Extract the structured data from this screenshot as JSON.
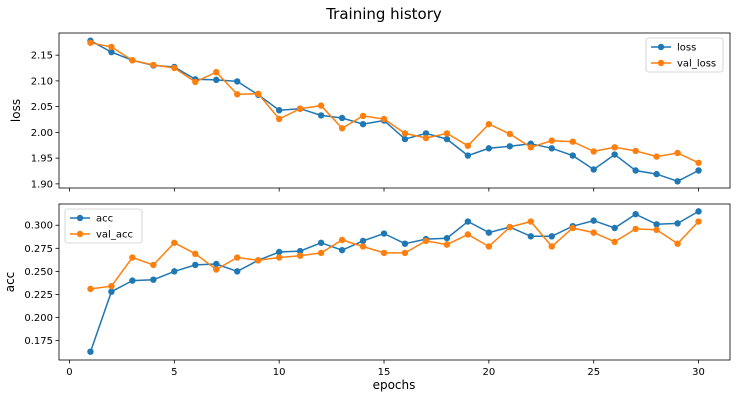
{
  "chart_data": {
    "title": "Training history",
    "xlabel": "epochs",
    "x": [
      1,
      2,
      3,
      4,
      5,
      6,
      7,
      8,
      9,
      10,
      11,
      12,
      13,
      14,
      15,
      16,
      17,
      18,
      19,
      20,
      21,
      22,
      23,
      24,
      25,
      26,
      27,
      28,
      29,
      30
    ],
    "xlim": [
      -0.5,
      31.5
    ],
    "xticks": [
      0,
      5,
      10,
      15,
      20,
      25,
      30
    ],
    "grid": false,
    "subplots": [
      {
        "type": "line",
        "ylabel": "loss",
        "ylim": [
          1.892,
          2.193
        ],
        "yticks": [
          1.9,
          1.95,
          2.0,
          2.05,
          2.1,
          2.15
        ],
        "ytick_labels": [
          "1.90",
          "1.95",
          "2.00",
          "2.05",
          "2.10",
          "2.15"
        ],
        "legend_position": "top-right",
        "series": [
          {
            "name": "loss",
            "color": "#1f77b4",
            "values": [
              2.178,
              2.156,
              2.14,
              2.13,
              2.127,
              2.103,
              2.102,
              2.099,
              2.073,
              2.043,
              2.046,
              2.033,
              2.028,
              2.016,
              2.023,
              1.987,
              1.998,
              1.987,
              1.955,
              1.969,
              1.973,
              1.978,
              1.969,
              1.955,
              1.928,
              1.957,
              1.926,
              1.919,
              1.905,
              1.926
            ]
          },
          {
            "name": "val_loss",
            "color": "#ff7f0e",
            "values": [
              2.174,
              2.166,
              2.14,
              2.131,
              2.125,
              2.098,
              2.117,
              2.074,
              2.075,
              2.026,
              2.046,
              2.052,
              2.008,
              2.032,
              2.026,
              1.998,
              1.989,
              1.998,
              1.974,
              2.016,
              1.997,
              1.971,
              1.984,
              1.982,
              1.963,
              1.971,
              1.964,
              1.953,
              1.96,
              1.941
            ]
          }
        ]
      },
      {
        "type": "line",
        "ylabel": "acc",
        "ylim": [
          0.154,
          0.323
        ],
        "yticks": [
          0.175,
          0.2,
          0.225,
          0.25,
          0.275,
          0.3
        ],
        "ytick_labels": [
          "0.175",
          "0.200",
          "0.225",
          "0.250",
          "0.275",
          "0.300"
        ],
        "legend_position": "top-left",
        "series": [
          {
            "name": "acc",
            "color": "#1f77b4",
            "values": [
              0.163,
              0.228,
              0.24,
              0.241,
              0.25,
              0.257,
              0.258,
              0.25,
              0.262,
              0.271,
              0.272,
              0.281,
              0.273,
              0.283,
              0.291,
              0.28,
              0.285,
              0.286,
              0.304,
              0.292,
              0.298,
              0.288,
              0.288,
              0.299,
              0.305,
              0.297,
              0.312,
              0.301,
              0.302,
              0.315
            ]
          },
          {
            "name": "val_acc",
            "color": "#ff7f0e",
            "values": [
              0.231,
              0.234,
              0.265,
              0.257,
              0.281,
              0.269,
              0.252,
              0.265,
              0.262,
              0.265,
              0.267,
              0.27,
              0.284,
              0.277,
              0.27,
              0.27,
              0.283,
              0.279,
              0.29,
              0.277,
              0.298,
              0.304,
              0.277,
              0.297,
              0.292,
              0.282,
              0.296,
              0.295,
              0.28,
              0.304
            ]
          }
        ]
      }
    ]
  }
}
